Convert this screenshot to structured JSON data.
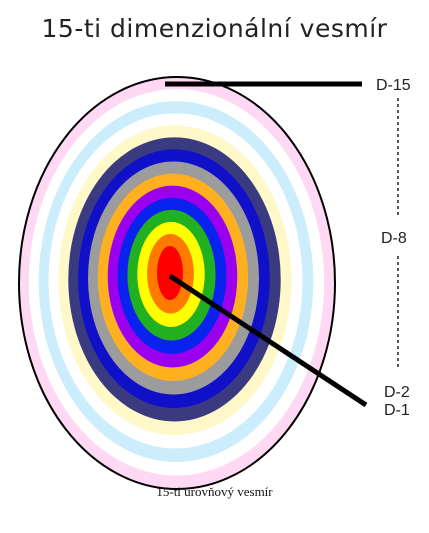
{
  "title": "15-ti dimenzionální vesmír",
  "caption": "15-ti úrovňový vesmír",
  "labels": {
    "d15": "D-15",
    "d8": "D-8",
    "d2": "D-2",
    "d1": "D-1"
  },
  "rings": [
    {
      "level": 15,
      "color": "#ffd8f4"
    },
    {
      "level": 14,
      "color": "#ffffff"
    },
    {
      "level": 13,
      "color": "#cceefc"
    },
    {
      "level": 12,
      "color": "#ffffff"
    },
    {
      "level": 11,
      "color": "#fff8c8"
    },
    {
      "level": 10,
      "color": "#3a3a80"
    },
    {
      "level": 9,
      "color": "#1010c8"
    },
    {
      "level": 8,
      "color": "#9c9c9c"
    },
    {
      "level": 7,
      "color": "#ffb020"
    },
    {
      "level": 6,
      "color": "#9a00ee"
    },
    {
      "level": 5,
      "color": "#0a22ee"
    },
    {
      "level": 4,
      "color": "#20b020"
    },
    {
      "level": 3,
      "color": "#ffff00"
    },
    {
      "level": 2,
      "color": "#ff7a00"
    },
    {
      "level": 1,
      "color": "#ff0000"
    }
  ],
  "colors": {
    "outline": "#000000",
    "pointer": "#000000",
    "text": "#222222"
  }
}
